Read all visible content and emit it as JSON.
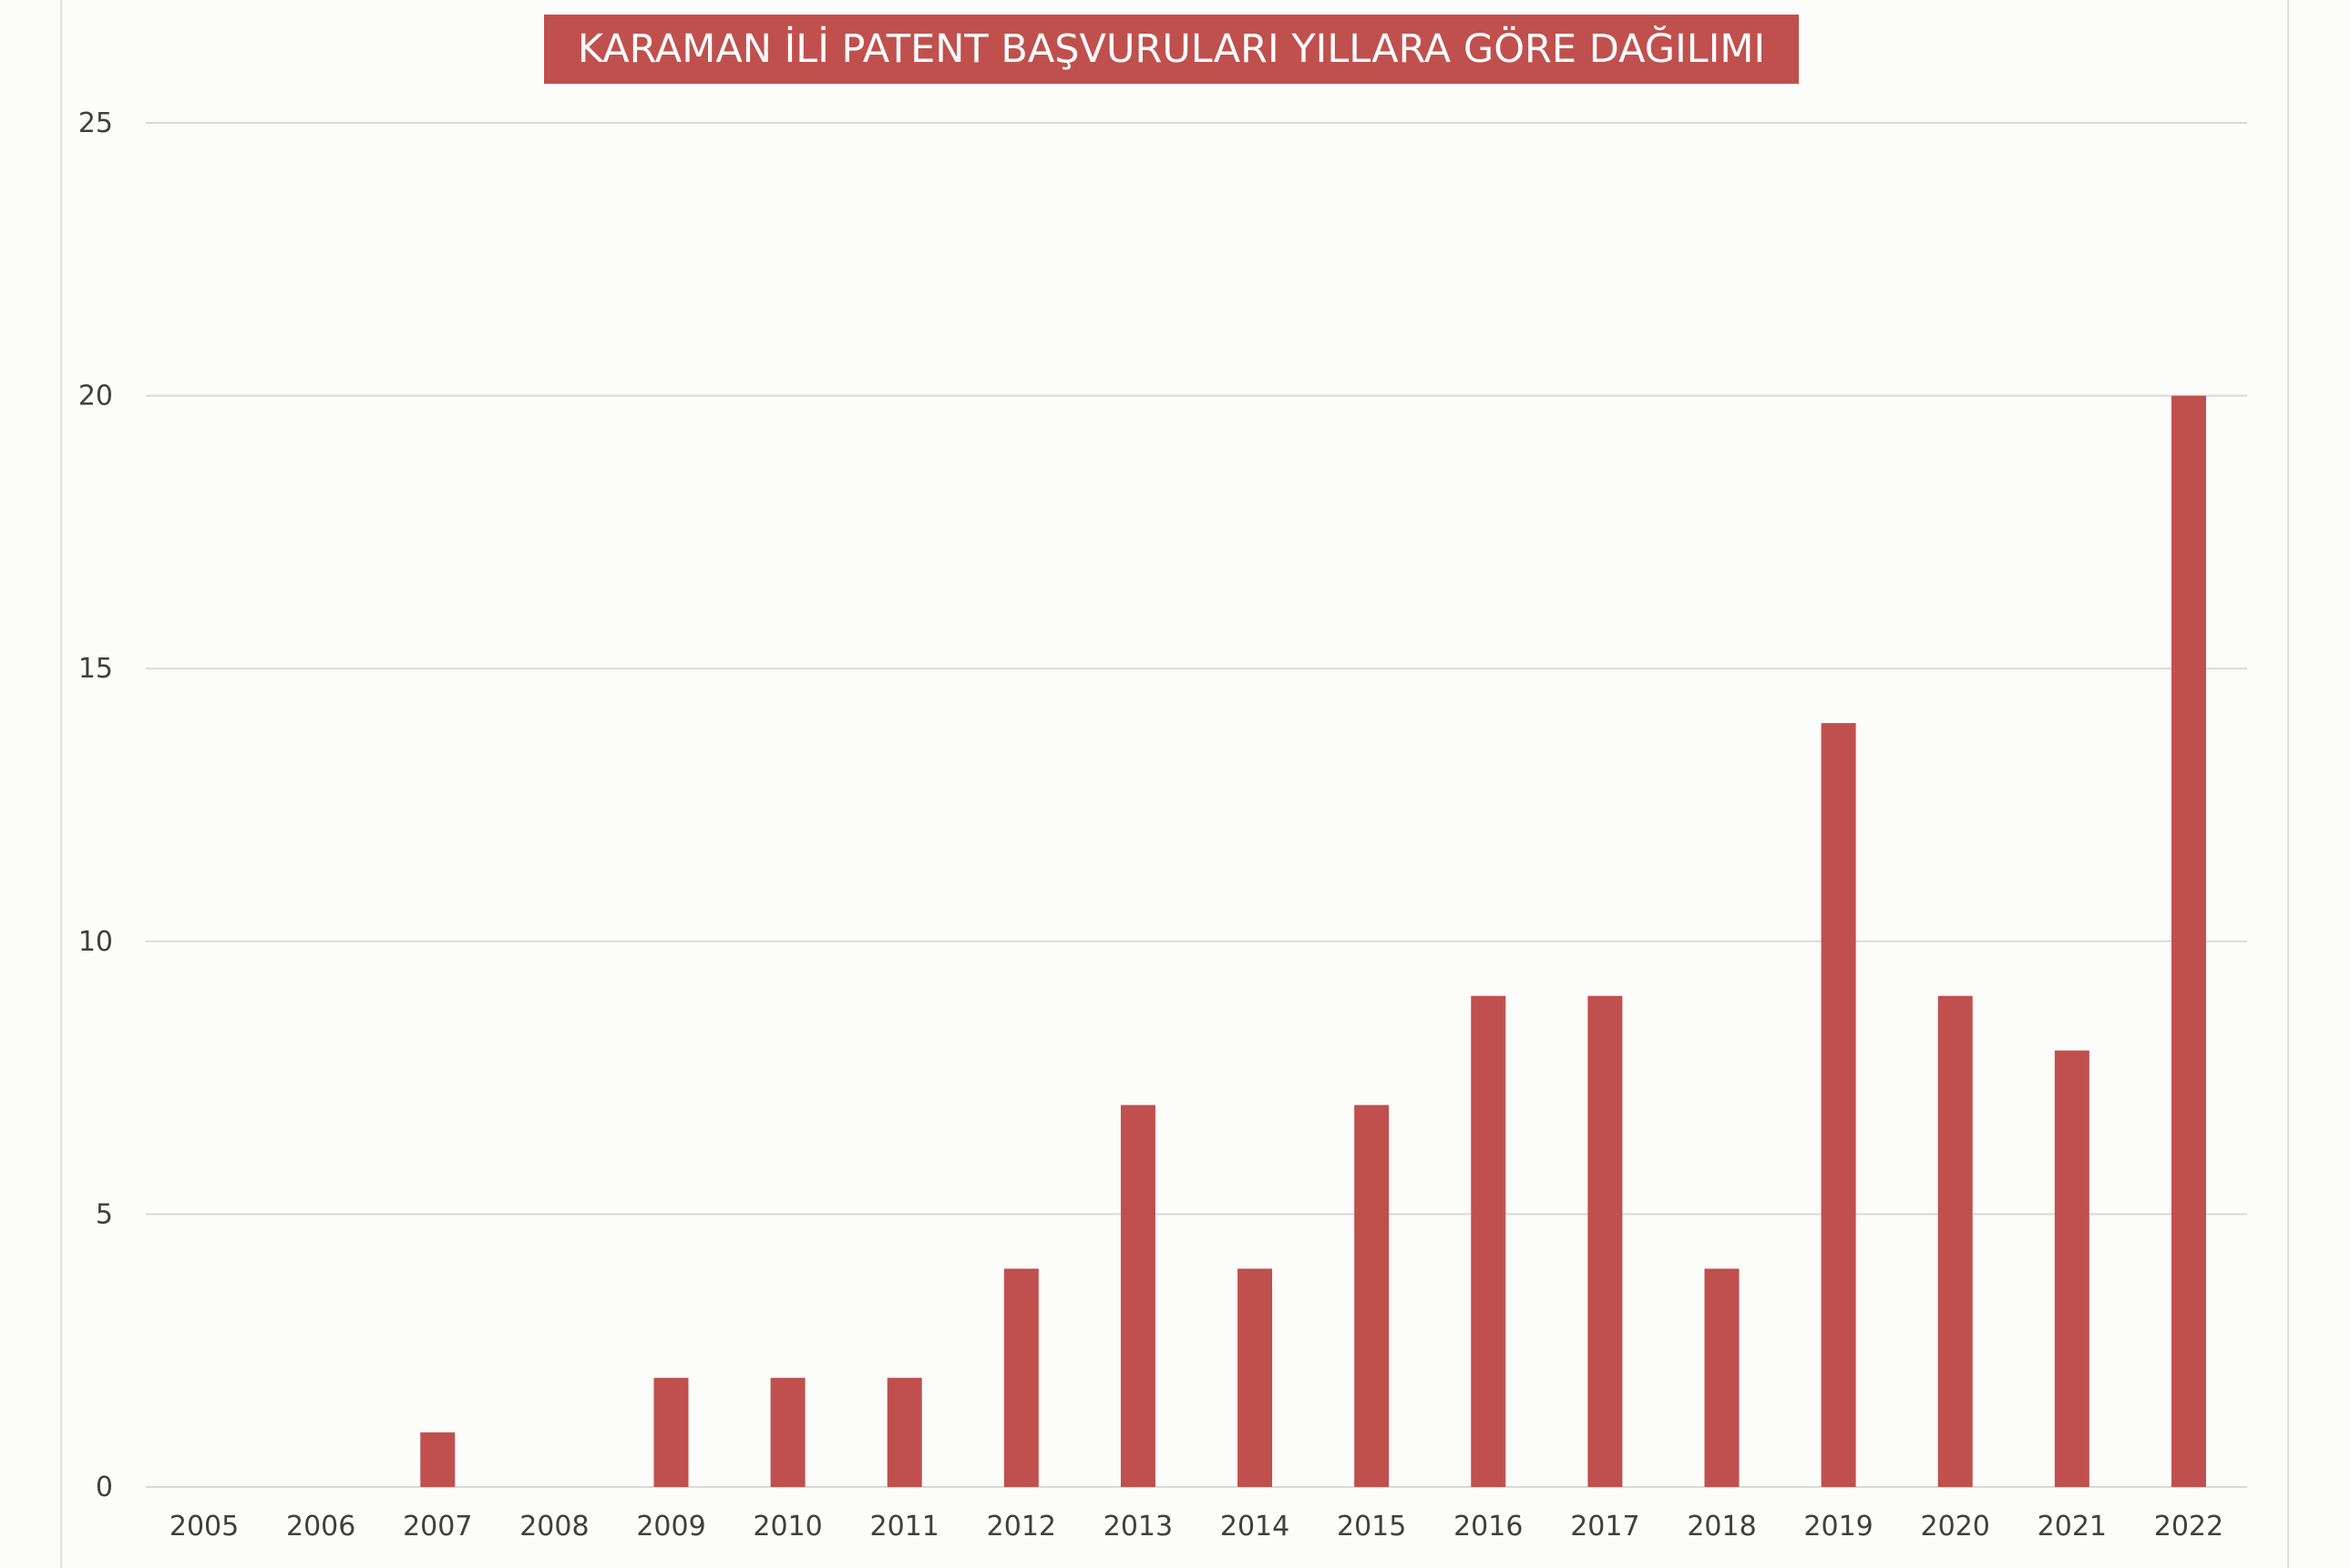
{
  "chart_data": {
    "type": "bar",
    "title": "KARAMAN İLİ PATENT BAŞVURULARI YILLARA GÖRE DAĞILIMI",
    "categories": [
      "2005",
      "2006",
      "2007",
      "2008",
      "2009",
      "2010",
      "2011",
      "2012",
      "2013",
      "2014",
      "2015",
      "2016",
      "2017",
      "2018",
      "2019",
      "2020",
      "2021",
      "2022"
    ],
    "values": [
      0,
      0,
      1,
      0,
      2,
      2,
      2,
      4,
      7,
      4,
      7,
      9,
      9,
      4,
      14,
      9,
      8,
      20
    ],
    "xlabel": "",
    "ylabel": "",
    "ylim": [
      0,
      25
    ],
    "yticks": [
      0,
      5,
      10,
      15,
      20,
      25
    ],
    "grid": true,
    "legend": "none",
    "colors": {
      "bar": "#c0504d",
      "title_background": "#c0504d",
      "title_text": "#ffffff",
      "grid": "#d9d9d9",
      "axis_line": "#d9d9d9",
      "tick_text": "#404040"
    }
  }
}
